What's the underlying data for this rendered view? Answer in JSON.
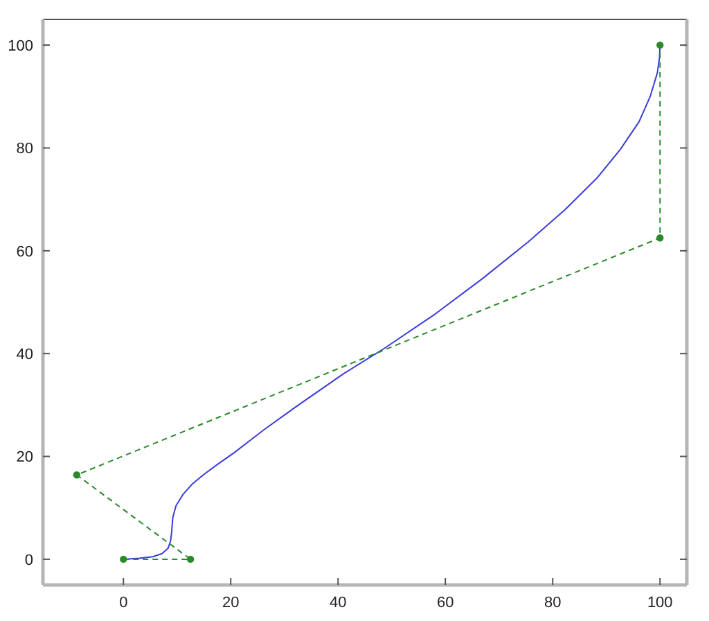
{
  "chart_data": {
    "type": "line",
    "xlim": [
      -15,
      105
    ],
    "ylim": [
      -5,
      105
    ],
    "xticks": [
      0,
      20,
      40,
      60,
      80,
      100
    ],
    "yticks": [
      0,
      20,
      40,
      60,
      80,
      100
    ],
    "series": [
      {
        "color": "#3b3bdc",
        "marker": "none",
        "line_style": "solid",
        "x": [
          0,
          2.9,
          5.5,
          7.2,
          8.3,
          8.8,
          9.0,
          9.2,
          9.8,
          11.1,
          12.8,
          15.0,
          17.6,
          20.6,
          23.6,
          26.2,
          32.2,
          40.9,
          48.6,
          58.1,
          66.8,
          75.4,
          82.3,
          88.3,
          92.6,
          96.1,
          98.2,
          99.5,
          99.9,
          100
        ],
        "values": [
          0,
          0.2,
          0.5,
          1.1,
          2.1,
          3.6,
          5.4,
          8.1,
          10.4,
          12.6,
          14.6,
          16.5,
          18.5,
          20.7,
          23.1,
          25.2,
          29.7,
          36.0,
          41.0,
          47.7,
          54.5,
          61.7,
          68.0,
          74.2,
          79.7,
          85.1,
          90.1,
          94.6,
          97.5,
          100
        ]
      },
      {
        "color": "#2a8a2a",
        "marker": "circle",
        "line_style": "dashed",
        "x": [
          0,
          12.5,
          -8.7,
          100,
          100
        ],
        "values": [
          0,
          0,
          16.4,
          62.5,
          100
        ]
      }
    ]
  }
}
